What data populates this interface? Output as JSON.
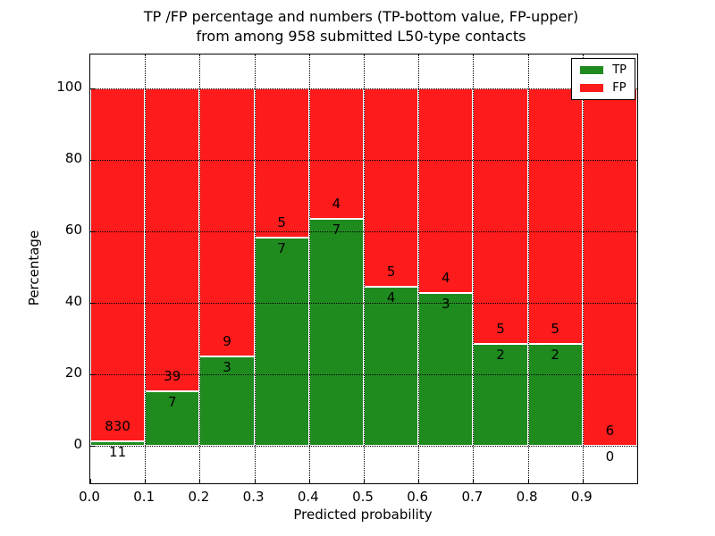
{
  "chart_data": {
    "type": "bar",
    "stacked": true,
    "title": "TP /FP percentage and numbers (TP-bottom value, FP-upper)\nfrom among 958 submitted L50-type contacts",
    "title_lines": [
      "TP /FP percentage and numbers (TP-bottom value, FP-upper)",
      "from among 958 submitted L50-type contacts"
    ],
    "xlabel": "Predicted probability",
    "ylabel": "Percentage",
    "total_contacts": 958,
    "bin_width": 0.1,
    "bin_starts": [
      0.0,
      0.1,
      0.2,
      0.3,
      0.4,
      0.5,
      0.6,
      0.7,
      0.8,
      0.9
    ],
    "series": [
      {
        "name": "TP",
        "color": "#1f8b1f",
        "counts": [
          11,
          7,
          3,
          7,
          7,
          4,
          3,
          2,
          2,
          0
        ]
      },
      {
        "name": "FP",
        "color": "#fe1b1b",
        "counts": [
          830,
          39,
          9,
          5,
          4,
          5,
          4,
          5,
          5,
          6
        ]
      }
    ],
    "tp_percentages": [
      1.3,
      15.2,
      25.0,
      58.3,
      63.6,
      44.4,
      42.9,
      28.6,
      28.6,
      0.0
    ],
    "bar_edge_color": "#ffffff",
    "xlim": [
      0.0,
      1.0
    ],
    "ylim": [
      -10.5,
      109.6
    ],
    "x_tick_labels": [
      "0.0",
      "0.1",
      "0.2",
      "0.3",
      "0.4",
      "0.5",
      "0.6",
      "0.7",
      "0.8",
      "0.9"
    ],
    "y_tick_values": [
      0,
      20,
      40,
      60,
      80,
      100
    ],
    "y_tick_labels": [
      "0",
      "20",
      "40",
      "60",
      "80",
      "100"
    ],
    "grid": true,
    "grid_style": "dotted",
    "legend_position": "upper right",
    "legend": [
      "TP",
      "FP"
    ]
  }
}
